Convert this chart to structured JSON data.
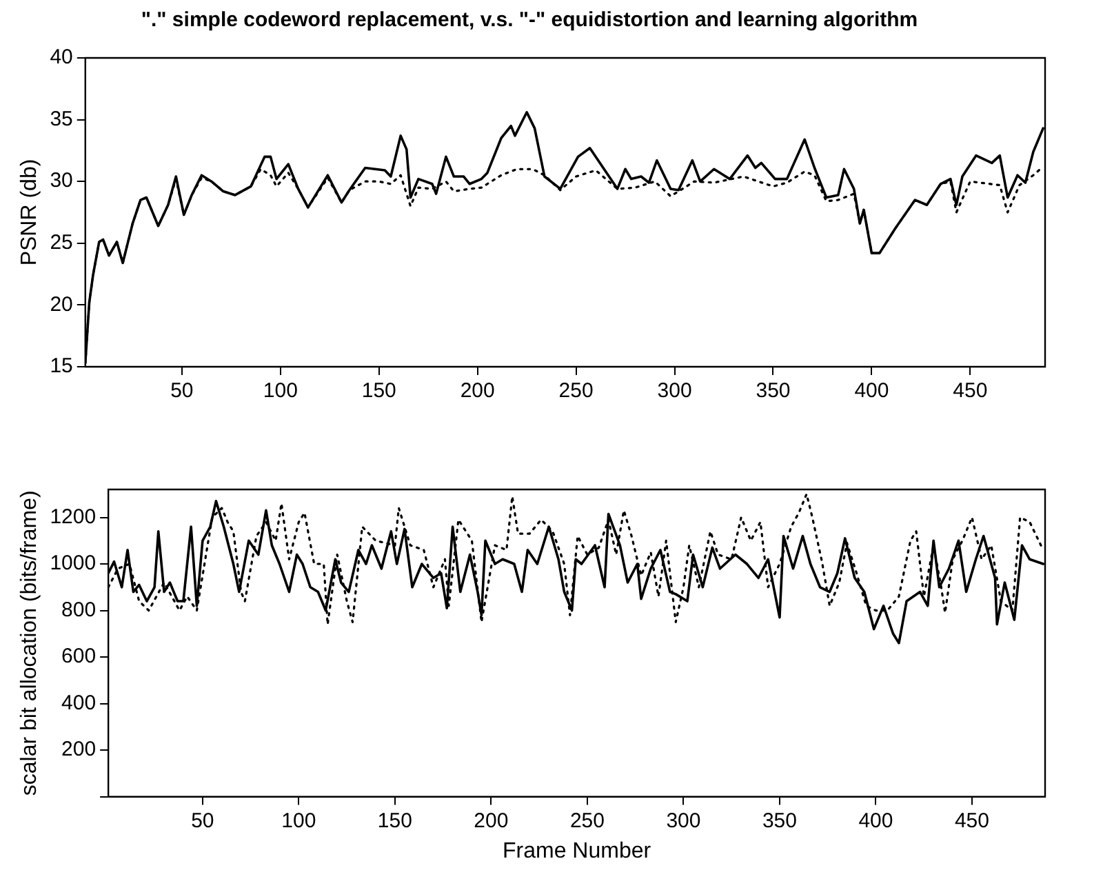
{
  "chart_data": [
    {
      "type": "line",
      "title": "\".\" simple codeword replacement, v.s. \"-\" equidistortion and learning algorithm",
      "ylabel": "PSNR (db)",
      "xlim": [
        1,
        488
      ],
      "xticks": [
        50,
        100,
        150,
        200,
        250,
        300,
        350,
        400,
        450
      ],
      "ylim": [
        15,
        40
      ],
      "yticks": [
        15,
        20,
        25,
        30,
        35,
        40
      ],
      "grid": false,
      "legend": false,
      "marker": "none",
      "series": [
        {
          "color": "#000000",
          "line_style": "dotted",
          "x": [
            1,
            3,
            5,
            8,
            10,
            13,
            17,
            20,
            25,
            29,
            32,
            38,
            43,
            47,
            51,
            55,
            60,
            65,
            71,
            77,
            85,
            90,
            95,
            98,
            104,
            109,
            114,
            124,
            131,
            135,
            143,
            150,
            156,
            161,
            166,
            170,
            177,
            184,
            188,
            196,
            202,
            212,
            220,
            228,
            234,
            242,
            250,
            260,
            271,
            280,
            290,
            298,
            310,
            320,
            335,
            350,
            357,
            366,
            371,
            377,
            383,
            391,
            394,
            396,
            400,
            404,
            412,
            422,
            428,
            435,
            440,
            443,
            450,
            465,
            469,
            475,
            482,
            487
          ],
          "values": [
            15.3,
            20.2,
            22.5,
            25.1,
            25.3,
            24.0,
            25.1,
            23.4,
            26.6,
            28.5,
            28.7,
            26.4,
            28.1,
            30.2,
            27.3,
            28.9,
            30.3,
            30.0,
            29.2,
            28.9,
            29.6,
            31.0,
            30.5,
            29.6,
            30.7,
            29.4,
            27.9,
            30.3,
            28.3,
            29.3,
            30.0,
            30.0,
            29.8,
            30.5,
            28.0,
            29.5,
            29.4,
            30.0,
            29.2,
            29.4,
            29.5,
            30.5,
            31.0,
            31.0,
            30.5,
            29.3,
            30.4,
            30.9,
            29.4,
            29.5,
            30.0,
            28.8,
            30.0,
            29.9,
            30.4,
            29.6,
            29.9,
            30.8,
            30.5,
            28.4,
            28.5,
            29.0,
            26.6,
            27.7,
            24.2,
            24.2,
            26.2,
            28.5,
            28.1,
            29.8,
            30.0,
            27.5,
            30.0,
            29.7,
            27.5,
            29.7,
            30.5,
            31.2
          ]
        },
        {
          "color": "#000000",
          "line_style": "solid",
          "x": [
            1,
            3,
            5,
            8,
            10,
            13,
            17,
            20,
            25,
            29,
            32,
            38,
            43,
            47,
            51,
            55,
            60,
            65,
            71,
            77,
            85,
            92,
            95,
            98,
            104,
            109,
            114,
            124,
            131,
            135,
            143,
            153,
            156,
            161,
            164,
            166,
            170,
            177,
            179,
            184,
            188,
            193,
            196,
            202,
            205,
            212,
            217,
            219,
            225,
            229,
            234,
            242,
            251,
            257,
            271,
            275,
            278,
            283,
            287,
            291,
            298,
            302,
            309,
            313,
            320,
            328,
            337,
            341,
            344,
            351,
            357,
            366,
            371,
            377,
            383,
            386,
            391,
            394,
            396,
            400,
            404,
            412,
            422,
            428,
            435,
            440,
            443,
            446,
            453,
            461,
            465,
            469,
            474,
            478,
            482,
            487
          ],
          "values": [
            15.3,
            20.2,
            22.5,
            25.1,
            25.3,
            24.0,
            25.1,
            23.4,
            26.6,
            28.5,
            28.7,
            26.4,
            28.1,
            30.4,
            27.3,
            28.9,
            30.5,
            30.0,
            29.2,
            28.9,
            29.6,
            32.0,
            32.0,
            30.2,
            31.4,
            29.4,
            27.9,
            30.5,
            28.3,
            29.3,
            31.1,
            30.9,
            30.4,
            33.7,
            32.6,
            28.7,
            30.2,
            29.8,
            29.0,
            32.0,
            30.4,
            30.4,
            29.8,
            30.2,
            30.7,
            33.5,
            34.5,
            33.7,
            35.6,
            34.3,
            30.4,
            29.4,
            32.0,
            32.7,
            29.4,
            31.0,
            30.2,
            30.4,
            29.9,
            31.7,
            29.4,
            29.3,
            31.7,
            30.0,
            31.0,
            30.2,
            32.1,
            31.1,
            31.5,
            30.2,
            30.2,
            33.4,
            31.1,
            28.7,
            28.9,
            31.0,
            29.4,
            26.6,
            27.7,
            24.2,
            24.2,
            26.2,
            28.5,
            28.1,
            29.8,
            30.2,
            28.1,
            30.4,
            32.1,
            31.5,
            32.1,
            28.7,
            30.5,
            29.9,
            32.4,
            34.3
          ]
        }
      ]
    },
    {
      "type": "line",
      "xlabel": "Frame Number",
      "ylabel": "scalar bit allocation (bits/frame)",
      "xlim": [
        1,
        488
      ],
      "xticks": [
        50,
        100,
        150,
        200,
        250,
        300,
        350,
        400,
        450
      ],
      "ylim": [
        0,
        1320
      ],
      "yticks": [
        {
          "value": 0,
          "label": null
        },
        200,
        400,
        600,
        800,
        1000,
        1200
      ],
      "grid": false,
      "legend": false,
      "marker": "none",
      "series": [
        {
          "color": "#000000",
          "line_style": "dotted",
          "x": [
            1,
            6,
            12,
            17,
            22,
            30,
            38,
            42,
            47,
            55,
            60,
            63,
            66,
            70,
            72,
            78,
            83,
            88,
            91,
            95,
            100,
            103,
            108,
            113,
            115,
            120,
            125,
            128,
            133,
            140,
            150,
            152,
            158,
            165,
            170,
            176,
            178,
            183,
            190,
            195,
            202,
            208,
            211,
            214,
            220,
            226,
            232,
            238,
            241,
            245,
            250,
            256,
            261,
            265,
            269,
            273,
            278,
            283,
            287,
            291,
            296,
            300,
            303,
            308,
            314,
            318,
            325,
            330,
            335,
            340,
            344,
            350,
            356,
            360,
            364,
            367,
            372,
            376,
            381,
            385,
            390,
            395,
            400,
            406,
            412,
            418,
            421,
            425,
            430,
            434,
            436,
            440,
            445,
            450,
            455,
            460,
            465,
            471,
            475,
            480,
            487
          ],
          "values": [
            900,
            980,
            1000,
            840,
            800,
            920,
            800,
            860,
            800,
            1200,
            1240,
            1180,
            1140,
            880,
            840,
            1120,
            1180,
            1100,
            1260,
            1020,
            1180,
            1220,
            1000,
            1000,
            740,
            1040,
            840,
            750,
            1160,
            1100,
            1080,
            1240,
            1080,
            1060,
            900,
            1020,
            820,
            1190,
            1100,
            750,
            1080,
            1060,
            1290,
            1130,
            1130,
            1190,
            1140,
            1000,
            780,
            1120,
            1040,
            1070,
            1190,
            1040,
            1230,
            1120,
            950,
            1050,
            860,
            1100,
            750,
            900,
            1080,
            900,
            1140,
            1040,
            1020,
            1200,
            1100,
            1180,
            900,
            1000,
            1160,
            1220,
            1300,
            1200,
            1010,
            820,
            920,
            1090,
            960,
            820,
            800,
            800,
            860,
            1100,
            1140,
            860,
            1080,
            900,
            790,
            1020,
            1100,
            1200,
            1020,
            1080,
            840,
            800,
            1200,
            1180,
            1060
          ]
        },
        {
          "color": "#000000",
          "line_style": "solid",
          "x": [
            1,
            4,
            8,
            11,
            14,
            17,
            21,
            25,
            27,
            30,
            33,
            37,
            40,
            44,
            47,
            50,
            54,
            57,
            61,
            66,
            69,
            74,
            79,
            83,
            86,
            90,
            95,
            99,
            102,
            106,
            110,
            114,
            119,
            122,
            126,
            131,
            135,
            138,
            143,
            148,
            151,
            155,
            159,
            164,
            170,
            174,
            177,
            180,
            184,
            189,
            193,
            195,
            197,
            202,
            206,
            212,
            216,
            219,
            224,
            230,
            235,
            238,
            242,
            244,
            247,
            254,
            259,
            261,
            267,
            271,
            276,
            278,
            283,
            288,
            293,
            296,
            302,
            305,
            310,
            315,
            319,
            327,
            333,
            339,
            344,
            350,
            352,
            357,
            362,
            366,
            371,
            376,
            380,
            384,
            389,
            394,
            399,
            404,
            409,
            412,
            416,
            423,
            427,
            430,
            433,
            438,
            443,
            447,
            452,
            456,
            462,
            463,
            467,
            472,
            476,
            480,
            487
          ],
          "values": [
            960,
            1010,
            900,
            1060,
            880,
            910,
            840,
            900,
            1140,
            880,
            920,
            840,
            840,
            1160,
            820,
            1100,
            1160,
            1270,
            1160,
            1000,
            880,
            1100,
            1040,
            1230,
            1080,
            1000,
            880,
            1040,
            1000,
            900,
            880,
            800,
            1020,
            920,
            880,
            1060,
            1000,
            1080,
            980,
            1140,
            1000,
            1150,
            900,
            1000,
            940,
            960,
            810,
            1160,
            880,
            1040,
            880,
            780,
            1100,
            1000,
            1020,
            1000,
            880,
            1060,
            1000,
            1160,
            1020,
            880,
            800,
            1020,
            1000,
            1080,
            900,
            1215,
            1080,
            920,
            1000,
            850,
            980,
            1060,
            880,
            870,
            840,
            1040,
            900,
            1070,
            980,
            1040,
            1000,
            940,
            1020,
            770,
            1120,
            980,
            1120,
            1000,
            900,
            880,
            960,
            1110,
            940,
            880,
            720,
            820,
            700,
            660,
            840,
            880,
            820,
            1100,
            900,
            980,
            1100,
            880,
            1020,
            1120,
            940,
            740,
            920,
            760,
            1080,
            1020,
            1000
          ]
        }
      ]
    }
  ]
}
